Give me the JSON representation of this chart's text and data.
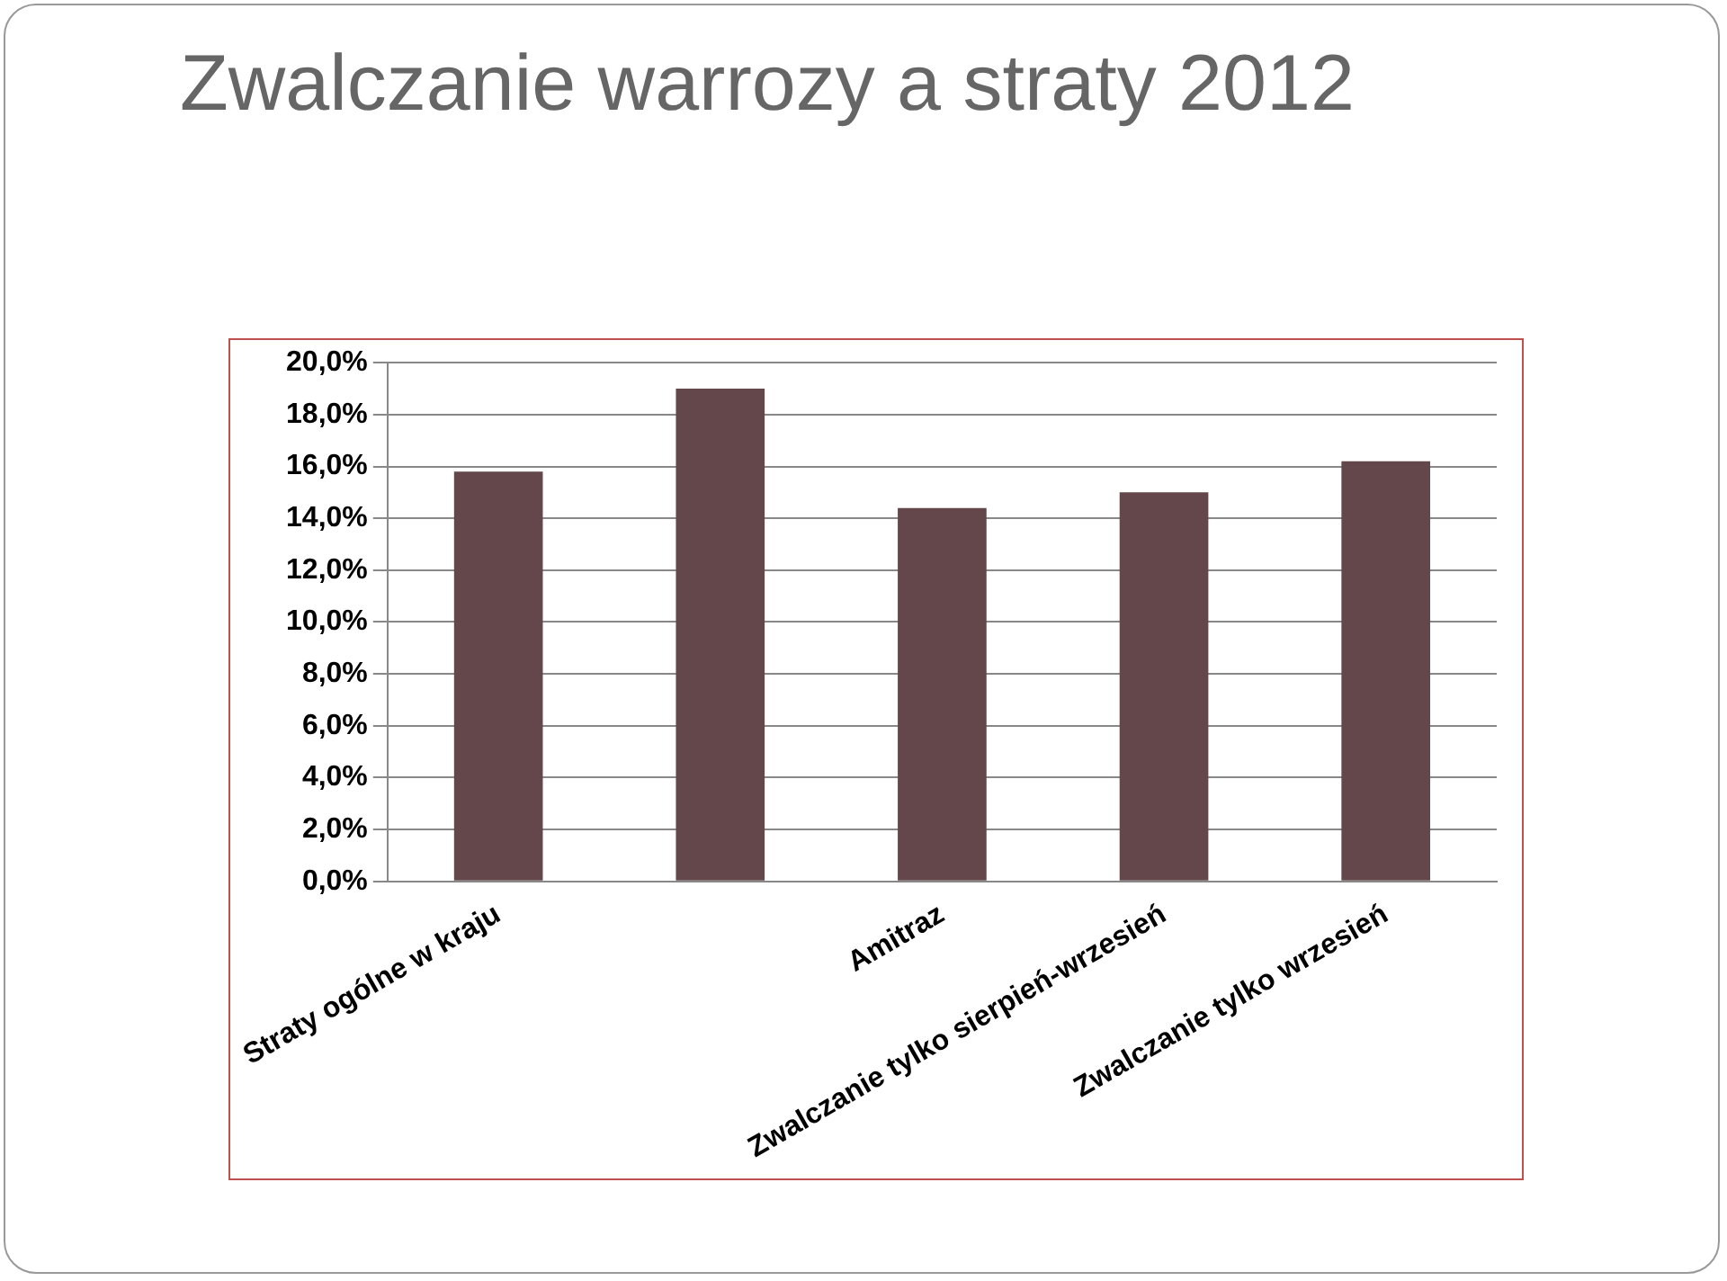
{
  "chart_data": {
    "type": "bar",
    "title": "Zwalczanie warrozy a straty 2012",
    "categories": [
      "Straty ogólne w kraju",
      null,
      "Amitraz",
      "Zwalczanie tylko sierpień-wrzesień",
      "Zwalczanie tylko wrzesień"
    ],
    "values": [
      15.8,
      19.0,
      14.4,
      15.0,
      16.2
    ],
    "color": "#63474a",
    "ylim": [
      0,
      20
    ],
    "yticks": [
      {
        "value": 0,
        "label": "0,0%"
      },
      {
        "value": 2,
        "label": "2,0%"
      },
      {
        "value": 4,
        "label": "4,0%"
      },
      {
        "value": 6,
        "label": "6,0%"
      },
      {
        "value": 8,
        "label": "8,0%"
      },
      {
        "value": 10,
        "label": "10,0%"
      },
      {
        "value": 12,
        "label": "12,0%"
      },
      {
        "value": 14,
        "label": "14,0%"
      },
      {
        "value": 16,
        "label": "16,0%"
      },
      {
        "value": 18,
        "label": "18,0%"
      },
      {
        "value": 20,
        "label": "20,0%"
      }
    ],
    "grid": "y",
    "legend": false
  }
}
